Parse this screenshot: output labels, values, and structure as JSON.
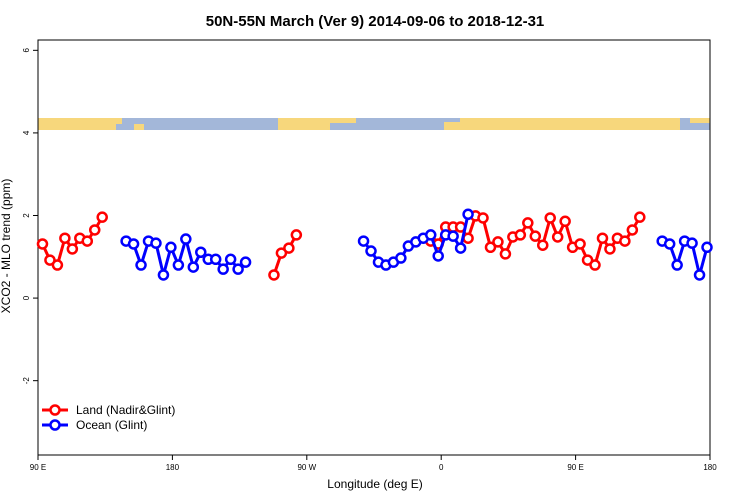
{
  "chart_data": {
    "type": "line",
    "title": "50N-55N March (Ver 9)   2014-09-06 to 2018-12-31",
    "x_label": "Longitude (deg E)",
    "y_label": "XCO2 - MLO trend (ppm)",
    "xlim": [
      90,
      540
    ],
    "xticks": [
      {
        "value": 90,
        "label": "90 E"
      },
      {
        "value": 180,
        "label": "180"
      },
      {
        "value": 270,
        "label": "90 W"
      },
      {
        "value": 360,
        "label": "0"
      },
      {
        "value": 450,
        "label": "90 E"
      },
      {
        "value": 540,
        "label": "180"
      }
    ],
    "ylim": [
      -3.8,
      6.25
    ],
    "yticks": [
      -2,
      0,
      2,
      4,
      6
    ],
    "legend": "bottom left",
    "series": [
      {
        "name": "Land (Nadir&Glint)",
        "color": "#ff0000",
        "x": [
          93,
          98,
          103,
          108,
          113,
          118,
          123,
          128,
          133,
          null,
          248,
          253,
          258,
          263,
          null,
          353,
          358,
          363,
          368,
          373,
          378,
          383,
          388,
          393,
          398,
          403,
          408,
          413,
          418,
          423,
          428,
          433,
          438,
          443,
          448,
          453,
          458,
          463,
          468,
          473,
          478,
          483,
          488,
          493
        ],
        "values": [
          1.31,
          0.92,
          0.8,
          1.45,
          1.19,
          1.45,
          1.38,
          1.65,
          1.96,
          null,
          0.56,
          1.09,
          1.21,
          1.53,
          null,
          1.38,
          1.31,
          1.72,
          1.72,
          1.72,
          1.45,
          1.99,
          1.94,
          1.23,
          1.36,
          1.07,
          1.48,
          1.53,
          1.82,
          1.5,
          1.28,
          1.94,
          1.48,
          1.86,
          1.23,
          1.31,
          0.92,
          0.8,
          1.45,
          1.19,
          1.45,
          1.38,
          1.65,
          1.96
        ]
      },
      {
        "name": "Ocean (Glint)",
        "color": "#0000ff",
        "x": [
          149,
          154,
          159,
          164,
          169,
          174,
          179,
          184,
          189,
          194,
          199,
          204,
          209,
          214,
          219,
          224,
          229,
          null,
          308,
          313,
          318,
          323,
          328,
          333,
          338,
          343,
          348,
          353,
          358,
          363,
          368,
          373,
          378,
          null,
          508,
          513,
          518,
          523,
          528,
          533,
          538
        ],
        "values": [
          1.38,
          1.31,
          0.8,
          1.38,
          1.33,
          0.56,
          1.23,
          0.8,
          1.43,
          0.75,
          1.11,
          0.94,
          0.94,
          0.7,
          0.94,
          0.7,
          0.87,
          null,
          1.38,
          1.14,
          0.87,
          0.8,
          0.87,
          0.97,
          1.26,
          1.36,
          1.45,
          1.53,
          1.02,
          1.53,
          1.5,
          1.21,
          2.03,
          null,
          1.38,
          1.31,
          0.8,
          1.38,
          1.33,
          0.56,
          1.23
        ]
      }
    ]
  }
}
